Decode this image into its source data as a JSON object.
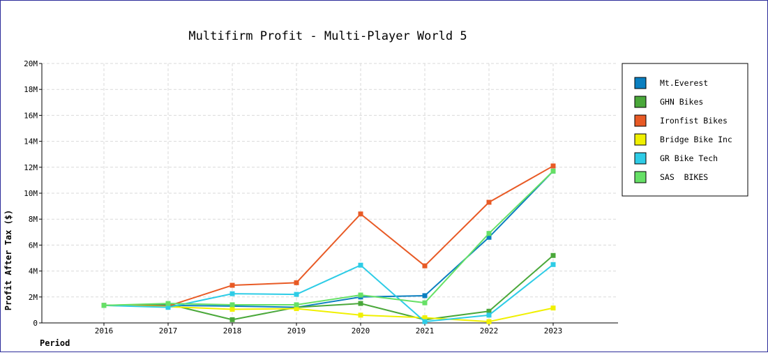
{
  "chart_data": {
    "type": "line",
    "title": "Multifirm Profit - Multi-Player World 5",
    "xlabel": "Period",
    "ylabel": "Profit After Tax ($)",
    "categories": [
      "2016",
      "2017",
      "2018",
      "2019",
      "2020",
      "2021",
      "2022",
      "2023"
    ],
    "ylim": [
      0,
      20000000
    ],
    "yticks": [
      "0",
      "2M",
      "4M",
      "6M",
      "8M",
      "10M",
      "12M",
      "14M",
      "16M",
      "18M",
      "20M"
    ],
    "grid": true,
    "legend_position": "right",
    "series": [
      {
        "name": "Mt.Everest",
        "color": "#0a7fc0",
        "values": [
          1350000,
          1350000,
          1300000,
          1200000,
          2000000,
          2100000,
          6600000,
          11700000
        ]
      },
      {
        "name": "GHN Bikes",
        "color": "#4aa83a",
        "values": [
          1350000,
          1450000,
          250000,
          1200000,
          1500000,
          250000,
          900000,
          5200000
        ]
      },
      {
        "name": "Ironfist Bikes",
        "color": "#e85a25",
        "values": [
          1350000,
          1300000,
          2900000,
          3100000,
          8400000,
          4400000,
          9300000,
          12100000
        ]
      },
      {
        "name": "Bridge Bike Inc",
        "color": "#f0f000",
        "values": [
          1350000,
          1250000,
          1050000,
          1100000,
          600000,
          400000,
          100000,
          1150000
        ]
      },
      {
        "name": "GR Bike Tech",
        "color": "#2ecce6",
        "values": [
          1350000,
          1200000,
          2250000,
          2200000,
          4450000,
          100000,
          600000,
          4500000
        ]
      },
      {
        "name": "SAS  BIKES",
        "color": "#66e066",
        "values": [
          1350000,
          1500000,
          1400000,
          1400000,
          2150000,
          1550000,
          6900000,
          11700000
        ]
      }
    ]
  }
}
